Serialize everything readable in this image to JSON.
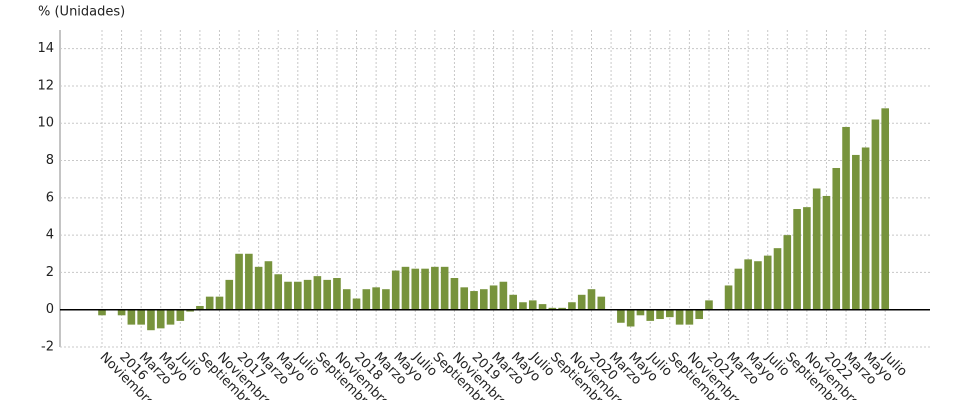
{
  "chart_data": {
    "type": "bar",
    "y_label": "% (Unidades)",
    "categories": [
      "Noviembre",
      null,
      "2016",
      null,
      "Marzo",
      null,
      "Mayo",
      null,
      "Julio",
      null,
      "Septiembre",
      null,
      "Noviembre",
      null,
      "2017",
      null,
      "Marzo",
      null,
      "Mayo",
      null,
      "Julio",
      null,
      "Septiembre",
      null,
      "Noviembre",
      null,
      "2018",
      null,
      "Marzo",
      null,
      "Mayo",
      null,
      "Julio",
      null,
      "Septiembre",
      null,
      "Noviembre",
      null,
      "2019",
      null,
      "Marzo",
      null,
      "Mayo",
      null,
      "Julio",
      null,
      "Septiembre",
      null,
      "Noviembre",
      null,
      "2020",
      null,
      "Marzo",
      null,
      "Mayo",
      null,
      "Julio",
      null,
      "Septiembre",
      null,
      "Noviembre",
      null,
      "2021",
      null,
      "Marzo",
      null,
      "Mayo",
      null,
      "Julio",
      null,
      "Septiembre",
      null,
      "Noviembre",
      null,
      "2022",
      null,
      "Marzo",
      null,
      "Mayo",
      null,
      "Julio"
    ],
    "values": [
      -0.3,
      0.0,
      -0.3,
      -0.8,
      -0.8,
      -1.1,
      -1.0,
      -0.8,
      -0.6,
      -0.1,
      0.2,
      0.7,
      0.7,
      1.6,
      3.0,
      3.0,
      2.3,
      2.6,
      1.9,
      1.5,
      1.5,
      1.6,
      1.8,
      1.6,
      1.7,
      1.1,
      0.6,
      1.1,
      1.2,
      1.1,
      2.1,
      2.3,
      2.2,
      2.2,
      2.3,
      2.3,
      1.7,
      1.2,
      1.0,
      1.1,
      1.3,
      1.5,
      0.8,
      0.4,
      0.5,
      0.3,
      0.1,
      0.1,
      0.4,
      0.8,
      1.1,
      0.7,
      0.0,
      -0.7,
      -0.9,
      -0.3,
      -0.6,
      -0.5,
      -0.4,
      -0.8,
      -0.8,
      -0.5,
      0.5,
      0.0,
      1.3,
      2.2,
      2.7,
      2.6,
      2.9,
      3.3,
      4.0,
      5.4,
      5.5,
      6.5,
      6.1,
      7.6,
      9.8,
      8.3,
      8.7,
      10.2,
      10.8
    ],
    "color": "#77933c",
    "ylim": [
      -2,
      15
    ],
    "yticks": [
      -2,
      0,
      2,
      4,
      6,
      8,
      10,
      12,
      14
    ],
    "grid": true
  }
}
